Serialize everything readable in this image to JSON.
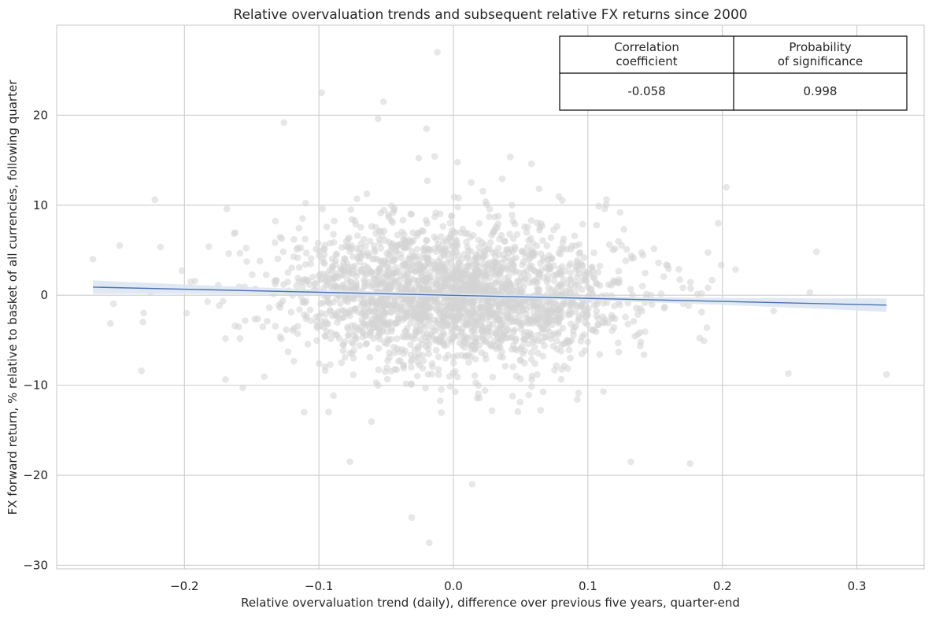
{
  "chart_data": {
    "type": "scatter",
    "title": "Relative overvaluation trends and subsequent relative FX returns since 2000",
    "xlabel": "Relative overvaluation trend (daily), difference over previous five years, quarter-end",
    "ylabel": "FX forward return, % relative to basket of all currencies, following quarter",
    "xlim": [
      -0.295,
      0.35
    ],
    "ylim": [
      -30.4,
      30.0
    ],
    "x_ticks": [
      -0.2,
      -0.1,
      0.0,
      0.1,
      0.2,
      0.3
    ],
    "x_tick_labels": [
      "−0.2",
      "−0.1",
      "0.0",
      "0.1",
      "0.2",
      "0.3"
    ],
    "y_ticks": [
      -30,
      -20,
      -10,
      0,
      10,
      20
    ],
    "y_tick_labels": [
      "−30",
      "−20",
      "−10",
      "0",
      "10",
      "20"
    ],
    "grid": true,
    "colors": {
      "points": "#d3d3d3",
      "regression_line": "#4c72b0",
      "confidence_band": "#dde6f2",
      "grid": "#cccccc"
    },
    "regression": {
      "x_range": [
        -0.268,
        0.322
      ],
      "y_at_start": 0.9,
      "y_at_end": -1.1,
      "ci_half_width_at_ends": 0.75,
      "ci_half_width_at_center": 0.2
    },
    "distribution": {
      "n_points": 2400,
      "x_center": 0.0,
      "x_sd": 0.06,
      "y_sd": 3.8
    },
    "outliers": [
      {
        "x": -0.268,
        "y": 4.0
      },
      {
        "x": -0.222,
        "y": 10.6
      },
      {
        "x": -0.232,
        "y": -8.4
      },
      {
        "x": -0.126,
        "y": 19.2
      },
      {
        "x": -0.098,
        "y": 22.5
      },
      {
        "x": -0.056,
        "y": 19.6
      },
      {
        "x": -0.052,
        "y": 21.5
      },
      {
        "x": -0.02,
        "y": 18.5
      },
      {
        "x": -0.012,
        "y": 27.0
      },
      {
        "x": 0.203,
        "y": 12.0
      },
      {
        "x": 0.322,
        "y": -8.8
      },
      {
        "x": -0.031,
        "y": -24.7
      },
      {
        "x": -0.018,
        "y": -27.5
      },
      {
        "x": 0.014,
        "y": -21.0
      },
      {
        "x": 0.176,
        "y": -18.7
      },
      {
        "x": -0.077,
        "y": -18.5
      },
      {
        "x": -0.111,
        "y": -13.0
      },
      {
        "x": 0.132,
        "y": -18.5
      },
      {
        "x": 0.058,
        "y": 14.6
      },
      {
        "x": 0.108,
        "y": 9.9
      },
      {
        "x": 0.197,
        "y": 8.0
      },
      {
        "x": 0.249,
        "y": -8.7
      },
      {
        "x": 0.265,
        "y": 0.3
      }
    ],
    "stats_table": {
      "headers": [
        "Correlation\ncoefficient",
        "Probability\nof significance"
      ],
      "values": [
        "-0.058",
        "0.998"
      ]
    }
  }
}
